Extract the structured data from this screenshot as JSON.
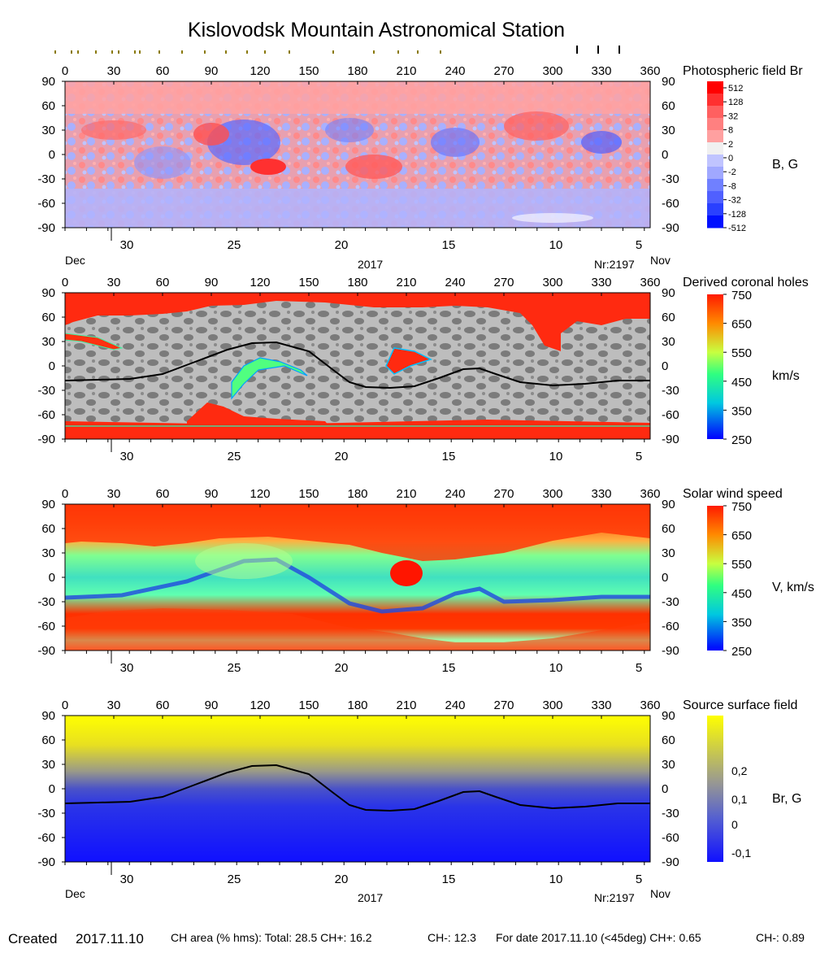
{
  "title": "Kislovodsk Mountain Astronomical Station",
  "footer": {
    "created_label": "Created",
    "created_date": "2017.11.10",
    "ch_area": "CH area (% hms): Total: 28.5 CH+: 16.2",
    "ch_minus": "CH-: 12.3",
    "for_date": "For date 2017.11.10 (<45deg) CH+: 0.65",
    "for_date_ch_minus": "CH-: 0.89"
  },
  "colors": {
    "field_pos": "#ff3030",
    "field_neg": "#3050ff",
    "field_bg_pos": "#ffa0a0",
    "field_bg_neg": "#a8b0ff",
    "hole_dark": "#7a7a7a",
    "hole_light": "#bcbcbc",
    "hole_red": "#ff2a10",
    "wind_red": "#ff2a10",
    "wind_cyan": "#30f0c0",
    "wind_blue": "#2050e0",
    "ss_yellow": "#ffff00",
    "ss_blue": "#1020ff"
  },
  "chart_data": [
    {
      "type": "heatmap",
      "panel": "Photospheric field Br",
      "title": "Photospheric field Br",
      "colorbar_label": "B, G",
      "colorbar_ticks": [
        "512",
        "128",
        "32",
        "8",
        "2",
        "0",
        "-2",
        "-8",
        "-32",
        "-128",
        "-512"
      ],
      "x_ticks_top": [
        "0",
        "30",
        "60",
        "90",
        "120",
        "150",
        "180",
        "210",
        "240",
        "270",
        "300",
        "330",
        "360"
      ],
      "y_ticks": [
        "90",
        "60",
        "30",
        "0",
        "-30",
        "-60",
        "-90"
      ],
      "date_ticks": [
        "30",
        "25",
        "20",
        "15",
        "10",
        "5"
      ],
      "left_month": "Dec",
      "center_year": "2017",
      "rotation_label": "Nr:2197",
      "right_month": "Nov",
      "xlim": [
        0,
        360
      ],
      "ylim": [
        -90,
        90
      ]
    },
    {
      "type": "heatmap",
      "panel": "Derived coronal holes",
      "title": "Derived coronal holes",
      "colorbar_label": "km/s",
      "colorbar_ticks": [
        "750",
        "650",
        "550",
        "450",
        "350",
        "250"
      ],
      "x_ticks_top": [
        "0",
        "30",
        "60",
        "90",
        "120",
        "150",
        "180",
        "210",
        "240",
        "270",
        "300",
        "330",
        "360"
      ],
      "y_ticks": [
        "90",
        "60",
        "30",
        "0",
        "-30",
        "-60",
        "-90"
      ],
      "date_ticks": [
        "30",
        "25",
        "20",
        "15",
        "10",
        "5"
      ],
      "xlim": [
        0,
        360
      ],
      "ylim": [
        -90,
        90
      ]
    },
    {
      "type": "heatmap",
      "panel": "Solar wind speed",
      "title": "Solar wind speed",
      "colorbar_label": "V, km/s",
      "colorbar_ticks": [
        "750",
        "650",
        "550",
        "450",
        "350",
        "250"
      ],
      "x_ticks_top": [
        "0",
        "30",
        "60",
        "90",
        "120",
        "150",
        "180",
        "210",
        "240",
        "270",
        "300",
        "330",
        "360"
      ],
      "y_ticks": [
        "90",
        "60",
        "30",
        "0",
        "-30",
        "-60",
        "-90"
      ],
      "date_ticks": [
        "30",
        "25",
        "20",
        "15",
        "10",
        "5"
      ],
      "xlim": [
        0,
        360
      ],
      "ylim": [
        -90,
        90
      ]
    },
    {
      "type": "heatmap",
      "panel": "Source surface field",
      "title": "Source surface field",
      "colorbar_label": "Br, G",
      "colorbar_ticks": [
        "0,2",
        "0,1",
        "0",
        "-0,1"
      ],
      "x_ticks_top": [
        "0",
        "30",
        "60",
        "90",
        "120",
        "150",
        "180",
        "210",
        "240",
        "270",
        "300",
        "330",
        "360"
      ],
      "y_ticks": [
        "90",
        "60",
        "30",
        "0",
        "-30",
        "-60",
        "-90"
      ],
      "date_ticks": [
        "30",
        "25",
        "20",
        "15",
        "10",
        "5"
      ],
      "left_month": "Dec",
      "center_year": "2017",
      "rotation_label": "Nr:2197",
      "right_month": "Nov",
      "xlim": [
        0,
        360
      ],
      "ylim": [
        -90,
        90
      ]
    }
  ],
  "neutral_line": {
    "lon": [
      0,
      20,
      40,
      60,
      80,
      100,
      115,
      130,
      150,
      165,
      175,
      185,
      200,
      215,
      230,
      245,
      255,
      265,
      280,
      300,
      320,
      340,
      360
    ],
    "lat": [
      -18,
      -17,
      -16,
      -10,
      5,
      20,
      28,
      29,
      18,
      -5,
      -20,
      -26,
      -27,
      -25,
      -15,
      -4,
      -3,
      -10,
      -20,
      -24,
      -22,
      -18,
      -18
    ]
  }
}
